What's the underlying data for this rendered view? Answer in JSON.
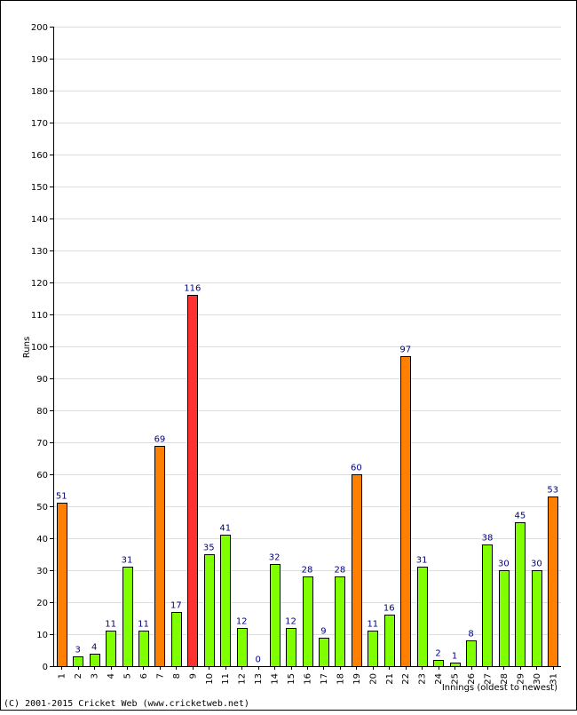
{
  "chart_data": {
    "type": "bar",
    "categories": [
      "1",
      "2",
      "3",
      "4",
      "5",
      "6",
      "7",
      "8",
      "9",
      "10",
      "11",
      "12",
      "13",
      "14",
      "15",
      "16",
      "17",
      "18",
      "19",
      "20",
      "21",
      "22",
      "23",
      "24",
      "25",
      "26",
      "27",
      "28",
      "29",
      "30",
      "31"
    ],
    "values": [
      51,
      3,
      4,
      11,
      31,
      11,
      69,
      17,
      116,
      35,
      41,
      12,
      0,
      32,
      12,
      28,
      9,
      28,
      60,
      11,
      16,
      97,
      31,
      2,
      1,
      8,
      38,
      30,
      45,
      30,
      53
    ],
    "xlabel": "Innings (oldest to newest)",
    "ylabel": "Runs",
    "ylim": [
      0,
      200
    ],
    "yticks": [
      0,
      10,
      20,
      30,
      40,
      50,
      60,
      70,
      80,
      90,
      100,
      110,
      120,
      130,
      140,
      150,
      160,
      170,
      180,
      190,
      200
    ],
    "grid": true,
    "legend": "none",
    "colors": {
      "under_50": "#80ff00",
      "fifty": "#ff8000",
      "hundred": "#ff3030",
      "outline": "#000000",
      "gridline": "#dddddd",
      "data_label": "#000080"
    }
  },
  "footer": {
    "copyright": "(C) 2001-2015 Cricket Web (www.cricketweb.net)"
  }
}
